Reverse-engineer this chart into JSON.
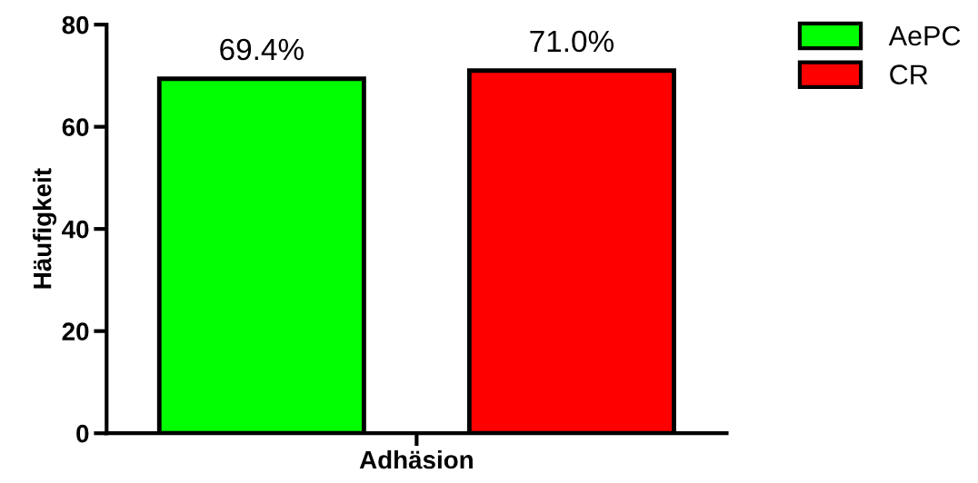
{
  "chart_data": {
    "type": "bar",
    "ylabel": "Häufigkeit",
    "categories": [
      "Adhäsion"
    ],
    "series": [
      {
        "name": "AePC",
        "color": "#00ff00",
        "values": [
          69.4
        ],
        "value_labels": [
          "69.4%"
        ]
      },
      {
        "name": "CR",
        "color": "#ff0000",
        "values": [
          71.0
        ],
        "value_labels": [
          "71.0%"
        ]
      }
    ],
    "ylim": [
      0,
      80
    ],
    "yticks": [
      0,
      20,
      40,
      60,
      80
    ],
    "grid": false,
    "legend": "top right"
  }
}
